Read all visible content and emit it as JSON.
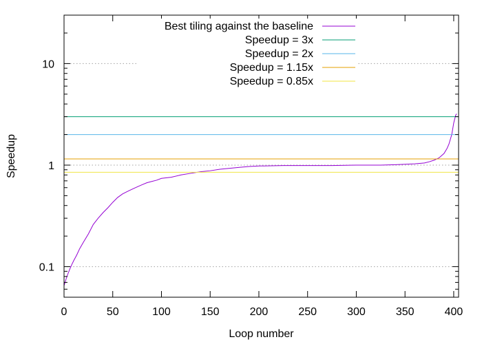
{
  "chart_data": {
    "type": "line",
    "title": "",
    "xlabel": "Loop number",
    "ylabel": "Speedup",
    "xlim": [
      0,
      405
    ],
    "ylim": [
      0.05,
      30
    ],
    "yscale": "log",
    "grid": "y-major dotted",
    "legend_position": "top",
    "x_ticks": [
      0,
      50,
      100,
      150,
      200,
      250,
      300,
      350,
      400
    ],
    "x_tick_labels": [
      "0",
      "50",
      "100",
      "150",
      "200",
      "250",
      "300",
      "350",
      "400"
    ],
    "y_ticks": [
      0.1,
      1,
      10
    ],
    "y_tick_labels": [
      "0.1",
      "1",
      "10"
    ],
    "series": [
      {
        "name": "Best tiling against the baseline",
        "color": "#9400d3",
        "kind": "curve",
        "x": [
          0,
          2,
          4,
          6,
          8,
          10,
          13,
          16,
          20,
          25,
          30,
          35,
          40,
          45,
          50,
          55,
          60,
          65,
          70,
          75,
          80,
          85,
          90,
          95,
          100,
          110,
          120,
          130,
          140,
          150,
          160,
          170,
          180,
          190,
          200,
          225,
          250,
          275,
          300,
          325,
          340,
          350,
          360,
          370,
          375,
          380,
          385,
          390,
          393,
          395,
          398,
          400,
          402,
          403
        ],
        "y": [
          0.065,
          0.075,
          0.085,
          0.095,
          0.105,
          0.115,
          0.13,
          0.15,
          0.175,
          0.21,
          0.26,
          0.3,
          0.34,
          0.38,
          0.43,
          0.48,
          0.52,
          0.55,
          0.58,
          0.61,
          0.64,
          0.67,
          0.69,
          0.71,
          0.74,
          0.76,
          0.8,
          0.83,
          0.86,
          0.88,
          0.91,
          0.93,
          0.95,
          0.97,
          0.98,
          0.99,
          0.99,
          0.99,
          1.0,
          1.0,
          1.01,
          1.02,
          1.03,
          1.05,
          1.08,
          1.12,
          1.18,
          1.3,
          1.45,
          1.6,
          2.0,
          2.6,
          3.1,
          3.2
        ]
      },
      {
        "name": "Speedup = 3x",
        "color": "#009e73",
        "kind": "hline",
        "value": 3
      },
      {
        "name": "Speedup = 2x",
        "color": "#56b4e9",
        "kind": "hline",
        "value": 2
      },
      {
        "name": "Speedup = 1.15x",
        "color": "#e69f00",
        "kind": "hline",
        "value": 1.15
      },
      {
        "name": "Speedup = 0.85x",
        "color": "#f0e442",
        "kind": "hline",
        "value": 0.85
      }
    ]
  }
}
